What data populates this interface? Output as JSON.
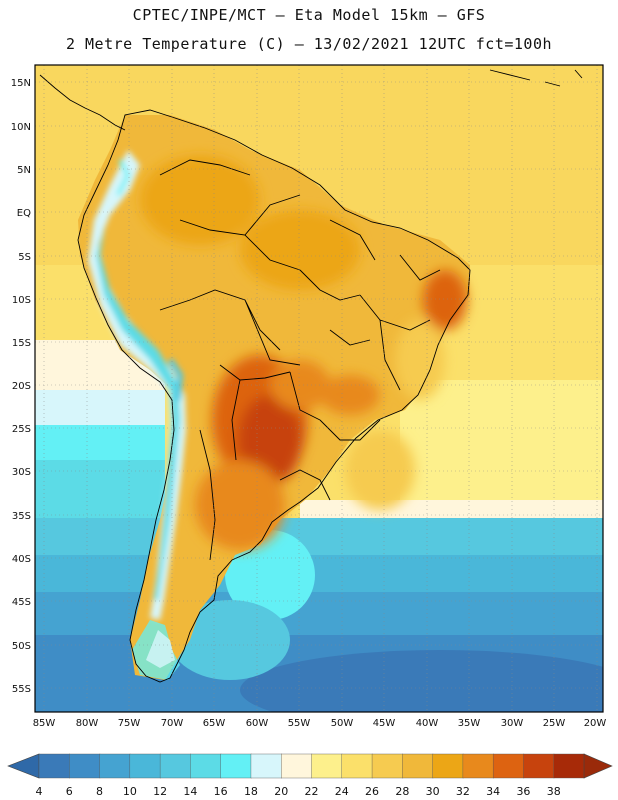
{
  "header": {
    "line1": "CPTEC/INPE/MCT –  Eta Model 15km – GFS",
    "line2": "2 Metre Temperature (C) – 13/02/2021 12UTC fct=100h"
  },
  "axes": {
    "lat_labels": [
      "15N",
      "10N",
      "5N",
      "EQ",
      "5S",
      "10S",
      "15S",
      "20S",
      "25S",
      "30S",
      "35S",
      "40S",
      "45S",
      "50S",
      "55S"
    ],
    "lon_labels": [
      "85W",
      "80W",
      "75W",
      "70W",
      "65W",
      "60W",
      "55W",
      "50W",
      "45W",
      "40W",
      "35W",
      "30W",
      "25W",
      "20W"
    ]
  },
  "colorbar": {
    "labels": [
      "4",
      "6",
      "8",
      "10",
      "12",
      "14",
      "16",
      "18",
      "20",
      "22",
      "24",
      "26",
      "28",
      "30",
      "32",
      "34",
      "36",
      "38"
    ],
    "colors": [
      "#3a7ab8",
      "#3f8dc6",
      "#45a3d1",
      "#4ab7d9",
      "#56c8df",
      "#5cdbe6",
      "#63f0f5",
      "#d7f6fb",
      "#fff6dc",
      "#fdf08c",
      "#fbe06a",
      "#f6cb50",
      "#f0b83a",
      "#eca616",
      "#e8891c",
      "#dd6311",
      "#c7430d",
      "#a72a08"
    ],
    "under_color": "#2f69a8",
    "over_color": "#9a2a0a"
  },
  "legend": {
    "units": "C"
  }
}
